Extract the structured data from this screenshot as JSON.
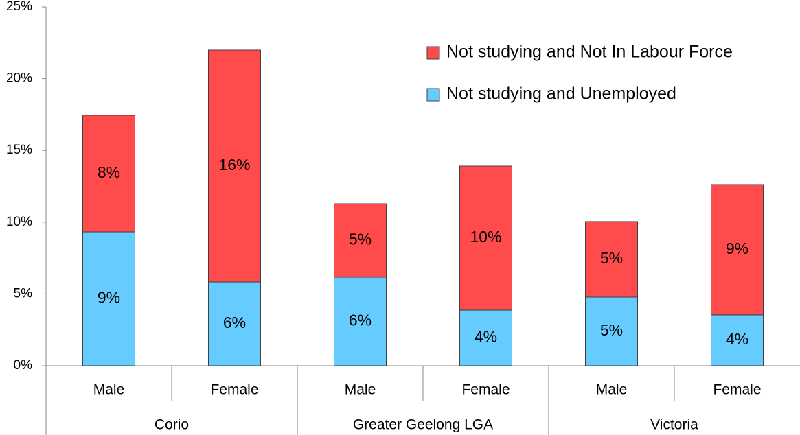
{
  "chart_data": {
    "type": "stacked_bar",
    "categories": [
      "Male",
      "Female",
      "Male",
      "Female",
      "Male",
      "Female"
    ],
    "groups": [
      "Corio",
      "Greater Geelong LGA",
      "Victoria"
    ],
    "series": [
      {
        "name": "Not studying and Unemployed",
        "color": "#66ccff",
        "values": [
          9.32,
          5.83,
          6.17,
          3.87,
          4.78,
          3.54
        ],
        "value_labels": [
          "9%",
          "6%",
          "6%",
          "4%",
          "5%",
          "4%"
        ]
      },
      {
        "name": "Not studying and Not In Labour Force",
        "color": "#ff4b4b",
        "values": [
          8.13,
          16.16,
          5.11,
          10.04,
          5.26,
          9.08
        ],
        "value_labels": [
          "8%",
          "16%",
          "5%",
          "10%",
          "5%",
          "9%"
        ]
      }
    ],
    "ylim": [
      0,
      25
    ],
    "yticks": [
      {
        "value": 0,
        "label": "0%"
      },
      {
        "value": 5,
        "label": "5%"
      },
      {
        "value": 10,
        "label": "10%"
      },
      {
        "value": 15,
        "label": "15%"
      },
      {
        "value": 20,
        "label": "20%"
      },
      {
        "value": 25,
        "label": "25%"
      }
    ],
    "legend": "upper right"
  }
}
